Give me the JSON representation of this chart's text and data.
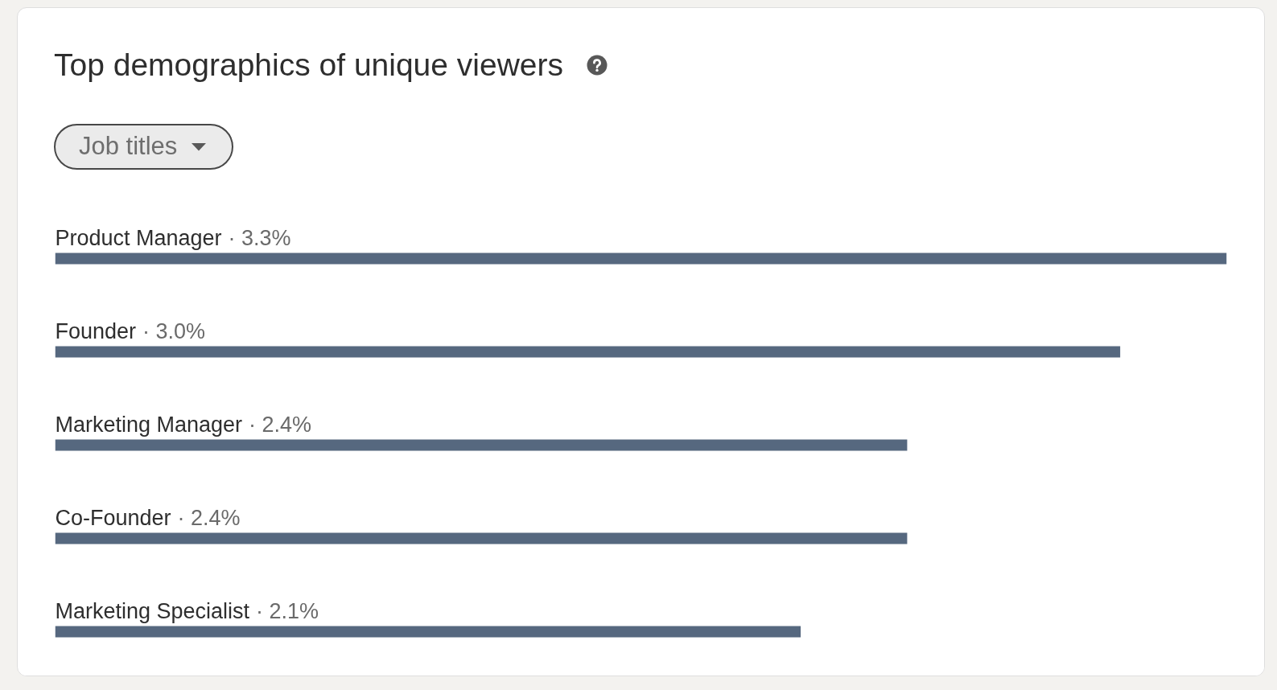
{
  "chart_data": {
    "type": "bar",
    "orientation": "horizontal",
    "title": "Top demographics of unique viewers",
    "ylabel": "Job titles",
    "categories": [
      "Product Manager",
      "Founder",
      "Marketing Manager",
      "Co-Founder",
      "Marketing Specialist"
    ],
    "values": [
      3.3,
      3.0,
      2.4,
      2.4,
      2.1
    ],
    "value_labels": [
      "· 3.3%",
      "· 3.0%",
      "· 2.4%",
      "· 2.4%",
      "· 2.1%"
    ],
    "color": "#56687f",
    "tick_labels": "y"
  }
}
